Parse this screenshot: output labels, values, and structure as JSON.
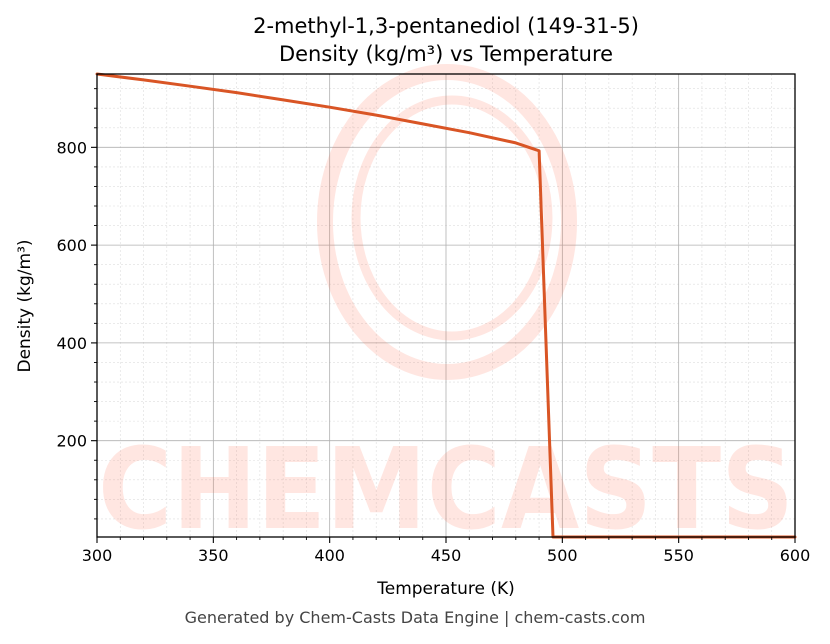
{
  "chart_data": {
    "type": "line",
    "title_line1": "2-methyl-1,3-pentanediol (149-31-5)",
    "title_line2": "Density (kg/m³) vs Temperature",
    "xlabel": "Temperature (K)",
    "ylabel": "Density (kg/m³)",
    "xlim": [
      300,
      600
    ],
    "ylim": [
      3,
      950
    ],
    "xticks": [
      300,
      350,
      400,
      450,
      500,
      550,
      600
    ],
    "yticks": [
      200,
      400,
      600,
      800
    ],
    "grid": true,
    "series": [
      {
        "color": "#d95525",
        "x": [
          300,
          320,
          340,
          360,
          380,
          400,
          420,
          440,
          460,
          480,
          490,
          496,
          600
        ],
        "y": [
          950,
          938,
          925,
          912,
          897,
          882,
          866,
          848,
          830,
          809,
          793,
          3,
          3
        ]
      }
    ]
  },
  "watermark": "CHEMCASTS",
  "footer": "Generated by Chem-Casts Data Engine | chem-casts.com"
}
